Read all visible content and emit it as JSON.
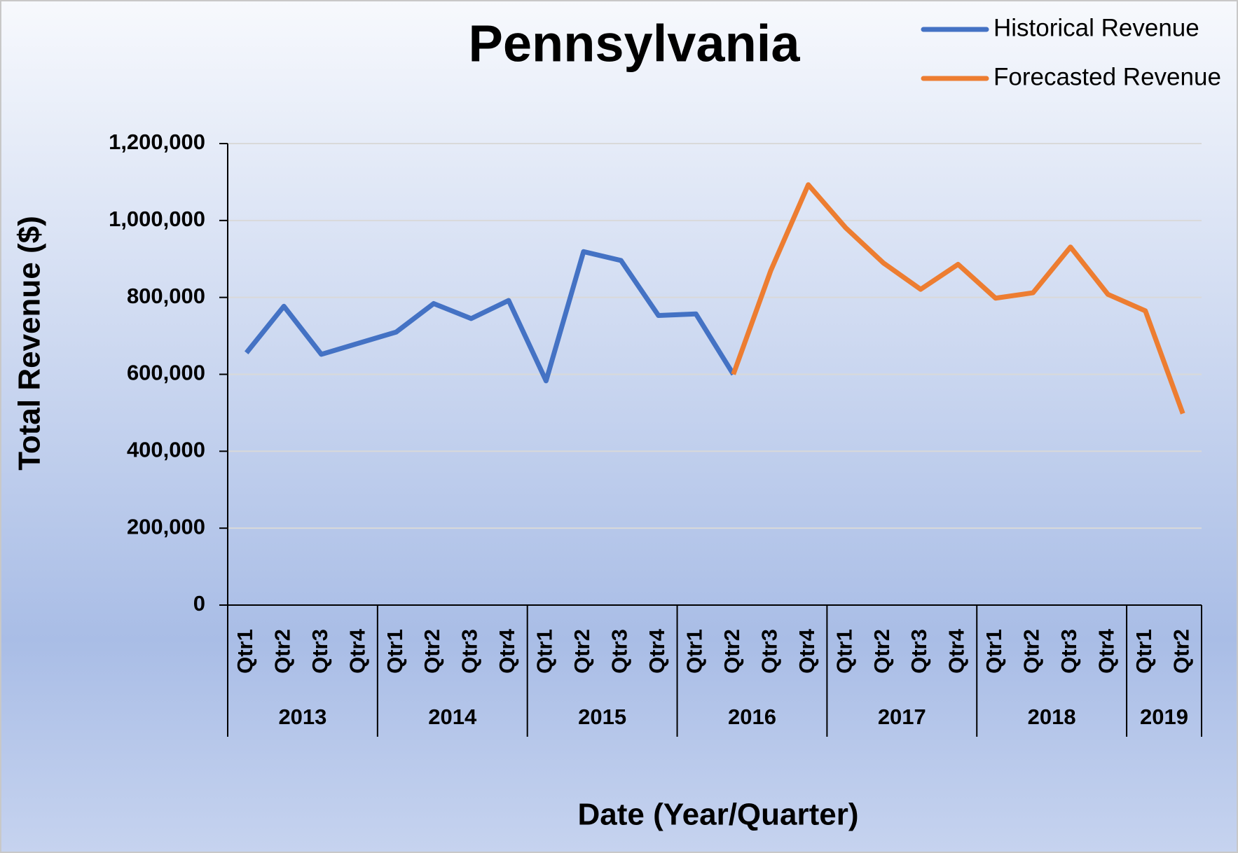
{
  "chart_data": {
    "type": "line",
    "title": "Pennsylvania",
    "x_label": "Date (Year/Quarter)",
    "y_label": "Total Revenue ($)",
    "categories": [
      "Qtr1",
      "Qtr2",
      "Qtr3",
      "Qtr4",
      "Qtr1",
      "Qtr2",
      "Qtr3",
      "Qtr4",
      "Qtr1",
      "Qtr2",
      "Qtr3",
      "Qtr4",
      "Qtr1",
      "Qtr2",
      "Qtr3",
      "Qtr4",
      "Qtr1",
      "Qtr2",
      "Qtr3",
      "Qtr4",
      "Qtr1",
      "Qtr2",
      "Qtr3",
      "Qtr4",
      "Qtr1",
      "Qtr2"
    ],
    "year_groups": [
      {
        "label": "2013",
        "count": 4
      },
      {
        "label": "2014",
        "count": 4
      },
      {
        "label": "2015",
        "count": 4
      },
      {
        "label": "2016",
        "count": 4
      },
      {
        "label": "2017",
        "count": 4
      },
      {
        "label": "2018",
        "count": 4
      },
      {
        "label": "2019",
        "count": 2
      }
    ],
    "series": [
      {
        "name": "Historical Revenue",
        "color": "#4472c4",
        "values": [
          656000,
          777000,
          652000,
          681000,
          710000,
          784000,
          745000,
          792000,
          583000,
          919000,
          896000,
          753000,
          757000,
          600000,
          null,
          null,
          null,
          null,
          null,
          null,
          null,
          null,
          null,
          null,
          null,
          null
        ]
      },
      {
        "name": "Forecasted Revenue",
        "color": "#ed7d31",
        "values": [
          null,
          null,
          null,
          null,
          null,
          null,
          null,
          null,
          null,
          null,
          null,
          null,
          null,
          600000,
          870000,
          1093000,
          981000,
          890000,
          821000,
          886000,
          798000,
          812000,
          931000,
          808000,
          765000,
          498000
        ]
      }
    ],
    "ylim": [
      0,
      1200000
    ],
    "yticks": [
      0,
      {
        "value": 200000,
        "label": "200,000"
      },
      {
        "value": 400000,
        "label": "400,000"
      },
      {
        "value": 600000,
        "label": "600,000"
      },
      {
        "value": 800000,
        "label": "800,000"
      },
      {
        "value": 1000000,
        "label": "1,000,000"
      },
      {
        "value": 1200000,
        "label": "1,200,000"
      }
    ],
    "grid": true,
    "legend": "top-right"
  }
}
